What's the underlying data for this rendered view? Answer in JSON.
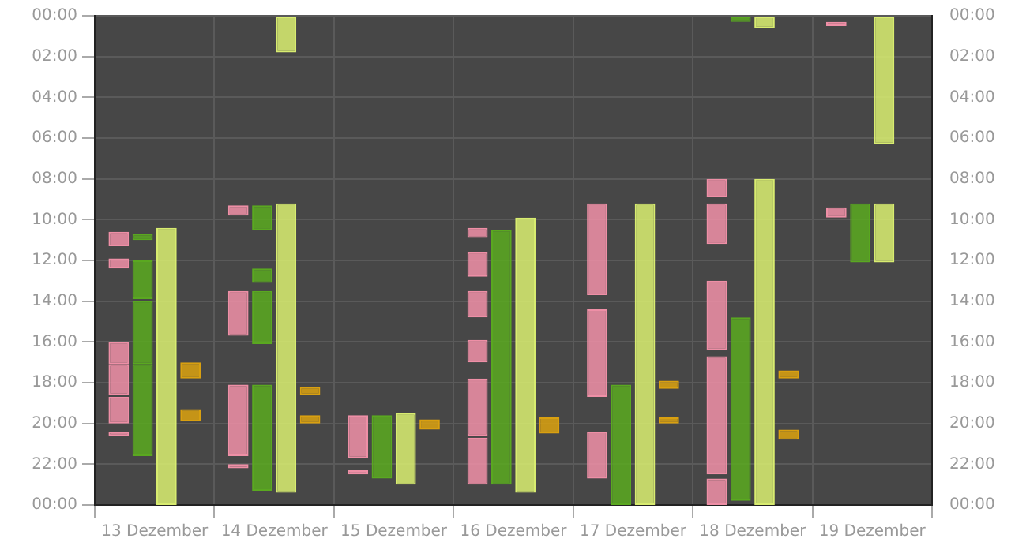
{
  "chart_data": {
    "type": "bar",
    "categories": [
      "13 Dezember",
      "14 Dezember",
      "15 Dezember",
      "16 Dezember",
      "17 Dezember",
      "18 Dezember",
      "19 Dezember"
    ],
    "ylim": [
      24,
      0
    ],
    "yticks": [
      {
        "value": 0,
        "label": "00:00"
      },
      {
        "value": 2,
        "label": "02:00"
      },
      {
        "value": 4,
        "label": "04:00"
      },
      {
        "value": 6,
        "label": "06:00"
      },
      {
        "value": 8,
        "label": "08:00"
      },
      {
        "value": 10,
        "label": "10:00"
      },
      {
        "value": 12,
        "label": "12:00"
      },
      {
        "value": 14,
        "label": "14:00"
      },
      {
        "value": 16,
        "label": "16:00"
      },
      {
        "value": 18,
        "label": "18:00"
      },
      {
        "value": 20,
        "label": "20:00"
      },
      {
        "value": 22,
        "label": "22:00"
      },
      {
        "value": 24,
        "label": "00:00"
      }
    ],
    "y2lim": [
      24,
      0
    ],
    "y2ticks": [
      {
        "value": 0,
        "label": "00:00"
      },
      {
        "value": 2,
        "label": "02:00"
      },
      {
        "value": 4,
        "label": "04:00"
      },
      {
        "value": 6,
        "label": "06:00"
      },
      {
        "value": 8,
        "label": "08:00"
      },
      {
        "value": 10,
        "label": "10:00"
      },
      {
        "value": 12,
        "label": "12:00"
      },
      {
        "value": 14,
        "label": "14:00"
      },
      {
        "value": 16,
        "label": "16:00"
      },
      {
        "value": 18,
        "label": "18:00"
      },
      {
        "value": 20,
        "label": "20:00"
      },
      {
        "value": 22,
        "label": "22:00"
      },
      {
        "value": 24,
        "label": "00:00"
      }
    ],
    "grid": true,
    "legend": false,
    "series": [
      {
        "color": "#ee8fa6",
        "base": [
          10.6,
          9.3,
          19.6,
          10.4,
          9.2,
          8.0,
          0.3
        ],
        "values": [
          0.7,
          0.5,
          2.1,
          0.5,
          4.5,
          0.9,
          0.2
        ]
      },
      {
        "color": "#ee8fa6",
        "base": [
          11.9,
          13.5,
          22.3,
          11.6,
          14.4,
          9.2,
          9.4
        ],
        "values": [
          0.5,
          2.2,
          0.2,
          1.2,
          4.3,
          2.0,
          0.5
        ]
      },
      {
        "color": "#ee8fa6",
        "base": [
          16.0,
          18.1,
          null,
          13.5,
          20.4,
          13.0,
          null
        ],
        "values": [
          1.1,
          3.5,
          null,
          1.3,
          2.3,
          3.4,
          null
        ]
      },
      {
        "color": "#ee8fa6",
        "base": [
          17.1,
          22.0,
          null,
          15.9,
          null,
          16.7,
          null
        ],
        "values": [
          1.5,
          0.2,
          null,
          1.1,
          null,
          5.8,
          null
        ]
      },
      {
        "color": "#ee8fa6",
        "base": [
          18.7,
          null,
          null,
          17.8,
          null,
          22.7,
          null
        ],
        "values": [
          1.3,
          null,
          null,
          2.8,
          null,
          1.3,
          null
        ]
      },
      {
        "color": "#ee8fa6",
        "base": [
          20.4,
          null,
          null,
          20.7,
          null,
          null,
          null
        ],
        "values": [
          0.2,
          null,
          null,
          2.3,
          null,
          null,
          null
        ]
      },
      {
        "color": "#5aa820",
        "base": [
          10.7,
          9.3,
          19.6,
          10.5,
          18.1,
          0,
          9.2
        ],
        "values": [
          0.3,
          1.2,
          3.1,
          12.5,
          5.9,
          0.3,
          2.9
        ]
      },
      {
        "color": "#5aa820",
        "base": [
          12.0,
          12.4,
          null,
          null,
          null,
          14.8,
          null
        ],
        "values": [
          1.9,
          0.7,
          null,
          null,
          null,
          9.0,
          null
        ]
      },
      {
        "color": "#5aa820",
        "base": [
          14.0,
          13.5,
          null,
          null,
          null,
          null,
          null
        ],
        "values": [
          3.1,
          2.6,
          null,
          null,
          null,
          null,
          null
        ]
      },
      {
        "color": "#5aa820",
        "base": [
          17.1,
          18.1,
          null,
          null,
          null,
          null,
          null
        ],
        "values": [
          4.5,
          5.2,
          null,
          null,
          null,
          null,
          null
        ]
      },
      {
        "color": "#d8ec70",
        "base": [
          10.4,
          0,
          19.5,
          9.9,
          9.2,
          0,
          0
        ],
        "values": [
          13.6,
          1.8,
          3.5,
          13.5,
          14.8,
          0.6,
          6.3
        ]
      },
      {
        "color": "#d8ec70",
        "base": [
          null,
          9.2,
          null,
          null,
          null,
          8.0,
          9.2
        ],
        "values": [
          null,
          14.2,
          null,
          null,
          null,
          16.0,
          2.9
        ]
      },
      {
        "color": "#d9a010",
        "base": [
          17.0,
          18.2,
          19.8,
          19.7,
          17.9,
          17.4,
          null
        ],
        "values": [
          0.8,
          0.4,
          0.5,
          0.8,
          0.4,
          0.4,
          null
        ]
      },
      {
        "color": "#d9a010",
        "base": [
          19.3,
          19.6,
          null,
          null,
          19.7,
          20.3,
          null
        ],
        "values": [
          0.6,
          0.4,
          null,
          null,
          0.3,
          0.5,
          null
        ]
      }
    ]
  }
}
